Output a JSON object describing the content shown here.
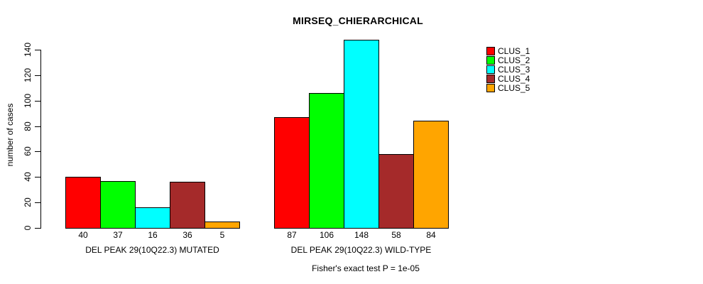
{
  "chart_data": {
    "type": "bar",
    "title": "MIRSEQ_CHIERARCHICAL",
    "ylabel": "number of cases",
    "footer": "Fisher's exact test P = 1e-05",
    "categories": [
      "DEL PEAK 29(10Q22.3) MUTATED",
      "DEL PEAK 29(10Q22.3) WILD-TYPE"
    ],
    "series": [
      {
        "name": "CLUS_1",
        "color": "#FF0000",
        "values": [
          40,
          87
        ]
      },
      {
        "name": "CLUS_2",
        "color": "#00FF00",
        "values": [
          37,
          106
        ]
      },
      {
        "name": "CLUS_3",
        "color": "#00FFFF",
        "values": [
          16,
          148
        ]
      },
      {
        "name": "CLUS_4",
        "color": "#A52A2A",
        "values": [
          36,
          58
        ]
      },
      {
        "name": "CLUS_5",
        "color": "#FFA500",
        "values": [
          5,
          84
        ]
      }
    ],
    "yticks": [
      0,
      20,
      40,
      60,
      80,
      100,
      120,
      140
    ],
    "ylim": [
      0,
      148
    ],
    "value_labels_shown": true,
    "grid": false,
    "legend_position": "top-right",
    "axis_color": "#000000",
    "background_color": "#FFFFFF"
  }
}
